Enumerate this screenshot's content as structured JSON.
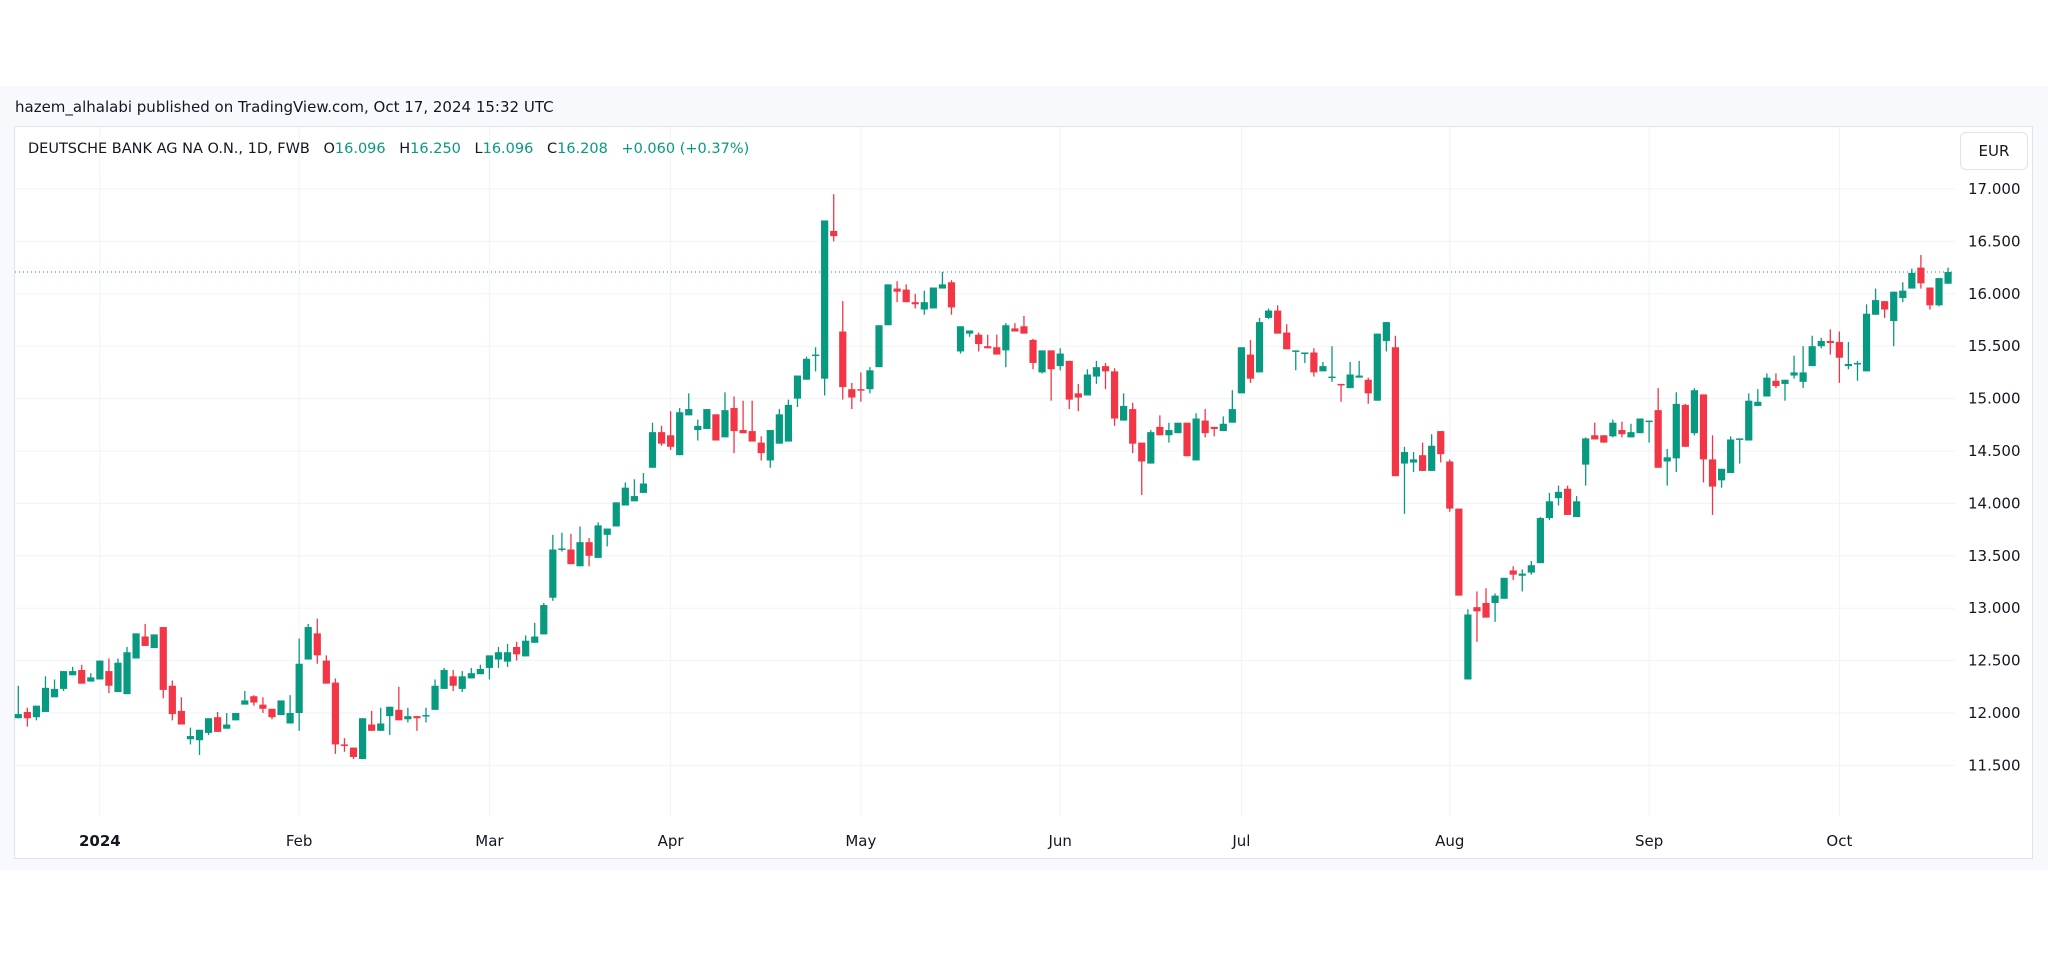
{
  "header": {
    "published": "hazem_alhalabi published on TradingView.com, Oct 17, 2024 15:32 UTC"
  },
  "legend": {
    "symbol": "DEUTSCHE BANK AG NA O.N., 1D, FWB",
    "o_label": "O",
    "o_value": "16.096",
    "h_label": "H",
    "h_value": "16.250",
    "l_label": "L",
    "l_value": "16.096",
    "c_label": "C",
    "c_value": "16.208",
    "change": "+0.060 (+0.37%)"
  },
  "currency_button": "EUR",
  "colors": {
    "up": "#089981",
    "down": "#f23645",
    "grid": "#f0f3fa",
    "last_price_line": "#089981"
  },
  "chart_data": {
    "type": "candlestick",
    "title": "",
    "interval": "1D",
    "last_price": 16.208,
    "ylim": [
      11.05,
      17.35
    ],
    "y_ticks": [
      "17.000",
      "16.500",
      "16.000",
      "15.500",
      "15.000",
      "14.500",
      "14.000",
      "13.500",
      "13.000",
      "12.500",
      "12.000",
      "11.500"
    ],
    "x_ticks": [
      {
        "label": "2024",
        "bar": 9,
        "bold": true
      },
      {
        "label": "Feb",
        "bar": 31
      },
      {
        "label": "Mar",
        "bar": 52
      },
      {
        "label": "Apr",
        "bar": 72
      },
      {
        "label": "May",
        "bar": 93
      },
      {
        "label": "Jun",
        "bar": 115
      },
      {
        "label": "Jul",
        "bar": 135
      },
      {
        "label": "Aug",
        "bar": 158
      },
      {
        "label": "Sep",
        "bar": 180
      },
      {
        "label": "Oct",
        "bar": 201
      }
    ],
    "grid": true,
    "ohlc_fields": [
      "open",
      "high",
      "low",
      "close"
    ],
    "ohlc": [
      [
        11.95,
        12.26,
        11.95,
        11.99
      ],
      [
        12.01,
        12.05,
        11.87,
        11.95
      ],
      [
        11.96,
        12.07,
        11.93,
        12.07
      ],
      [
        12.01,
        12.35,
        12.01,
        12.24
      ],
      [
        12.15,
        12.32,
        12.15,
        12.23
      ],
      [
        12.23,
        12.4,
        12.21,
        12.4
      ],
      [
        12.36,
        12.44,
        12.36,
        12.4
      ],
      [
        12.41,
        12.46,
        12.28,
        12.28
      ],
      [
        12.3,
        12.38,
        12.3,
        12.34
      ],
      [
        12.32,
        12.5,
        12.32,
        12.5
      ],
      [
        12.4,
        12.52,
        12.19,
        12.26
      ],
      [
        12.2,
        12.52,
        12.2,
        12.48
      ],
      [
        12.18,
        12.63,
        12.18,
        12.58
      ],
      [
        12.52,
        12.76,
        12.52,
        12.76
      ],
      [
        12.73,
        12.85,
        12.64,
        12.64
      ],
      [
        12.62,
        12.75,
        12.62,
        12.75
      ],
      [
        12.82,
        12.82,
        12.14,
        12.22
      ],
      [
        12.26,
        12.31,
        11.93,
        11.99
      ],
      [
        12.02,
        12.15,
        11.89,
        11.89
      ],
      [
        11.75,
        11.86,
        11.7,
        11.78
      ],
      [
        11.74,
        11.84,
        11.6,
        11.84
      ],
      [
        11.81,
        11.95,
        11.79,
        11.95
      ],
      [
        11.96,
        12.01,
        11.82,
        11.82
      ],
      [
        11.85,
        12.0,
        11.85,
        11.89
      ],
      [
        11.93,
        12.0,
        11.93,
        12.0
      ],
      [
        12.08,
        12.21,
        12.08,
        12.12
      ],
      [
        12.16,
        12.17,
        12.07,
        12.1
      ],
      [
        12.08,
        12.15,
        12.0,
        12.04
      ],
      [
        12.04,
        12.04,
        11.94,
        11.96
      ],
      [
        11.98,
        12.12,
        11.98,
        12.12
      ],
      [
        11.9,
        12.17,
        11.9,
        12.0
      ],
      [
        12.0,
        12.71,
        11.83,
        12.47
      ],
      [
        12.51,
        12.85,
        12.51,
        12.82
      ],
      [
        12.76,
        12.9,
        12.47,
        12.55
      ],
      [
        12.5,
        12.55,
        12.28,
        12.28
      ],
      [
        12.29,
        12.33,
        11.61,
        11.7
      ],
      [
        11.7,
        11.76,
        11.63,
        11.69
      ],
      [
        11.67,
        11.67,
        11.56,
        11.58
      ],
      [
        11.56,
        11.95,
        11.56,
        11.95
      ],
      [
        11.89,
        12.02,
        11.83,
        11.83
      ],
      [
        11.83,
        12.05,
        11.83,
        11.9
      ],
      [
        11.97,
        12.06,
        11.79,
        12.06
      ],
      [
        12.03,
        12.25,
        11.93,
        11.93
      ],
      [
        11.94,
        12.05,
        11.91,
        11.97
      ],
      [
        11.97,
        11.97,
        11.83,
        11.95
      ],
      [
        11.97,
        12.05,
        11.91,
        11.98
      ],
      [
        12.03,
        12.32,
        12.03,
        12.26
      ],
      [
        12.23,
        12.43,
        12.23,
        12.41
      ],
      [
        12.35,
        12.41,
        12.21,
        12.26
      ],
      [
        12.23,
        12.4,
        12.2,
        12.35
      ],
      [
        12.33,
        12.43,
        12.33,
        12.38
      ],
      [
        12.37,
        12.46,
        12.37,
        12.42
      ],
      [
        12.43,
        12.55,
        12.32,
        12.55
      ],
      [
        12.51,
        12.63,
        12.43,
        12.58
      ],
      [
        12.49,
        12.66,
        12.44,
        12.58
      ],
      [
        12.63,
        12.68,
        12.5,
        12.56
      ],
      [
        12.54,
        12.74,
        12.54,
        12.69
      ],
      [
        12.67,
        12.86,
        12.67,
        12.73
      ],
      [
        12.75,
        13.05,
        12.75,
        13.03
      ],
      [
        13.1,
        13.7,
        13.07,
        13.56
      ],
      [
        13.56,
        13.72,
        13.54,
        13.57
      ],
      [
        13.56,
        13.71,
        13.42,
        13.42
      ],
      [
        13.4,
        13.78,
        13.4,
        13.63
      ],
      [
        13.63,
        13.67,
        13.4,
        13.5
      ],
      [
        13.48,
        13.82,
        13.48,
        13.79
      ],
      [
        13.7,
        13.76,
        13.59,
        13.76
      ],
      [
        13.78,
        14.01,
        13.78,
        14.01
      ],
      [
        13.98,
        14.2,
        13.98,
        14.15
      ],
      [
        14.02,
        14.23,
        14.02,
        14.07
      ],
      [
        14.1,
        14.29,
        14.1,
        14.19
      ],
      [
        14.34,
        14.77,
        14.34,
        14.68
      ],
      [
        14.68,
        14.74,
        14.55,
        14.57
      ],
      [
        14.65,
        14.88,
        14.51,
        14.54
      ],
      [
        14.46,
        14.91,
        14.46,
        14.87
      ],
      [
        14.84,
        15.05,
        14.84,
        14.9
      ],
      [
        14.7,
        14.8,
        14.6,
        14.74
      ],
      [
        14.71,
        14.9,
        14.71,
        14.9
      ],
      [
        14.85,
        14.85,
        14.6,
        14.6
      ],
      [
        14.63,
        15.06,
        14.63,
        14.89
      ],
      [
        14.91,
        15.02,
        14.48,
        14.69
      ],
      [
        14.7,
        14.98,
        14.67,
        14.67
      ],
      [
        14.69,
        14.98,
        14.59,
        14.59
      ],
      [
        14.58,
        14.64,
        14.41,
        14.48
      ],
      [
        14.41,
        14.7,
        14.34,
        14.7
      ],
      [
        14.57,
        14.9,
        14.57,
        14.85
      ],
      [
        14.59,
        14.99,
        14.59,
        14.94
      ],
      [
        15.0,
        15.22,
        14.92,
        15.22
      ],
      [
        15.18,
        15.4,
        15.18,
        15.38
      ],
      [
        15.41,
        15.49,
        15.26,
        15.42
      ],
      [
        15.19,
        16.7,
        15.03,
        16.7
      ],
      [
        16.6,
        16.95,
        16.5,
        16.55
      ],
      [
        15.64,
        15.93,
        14.99,
        15.11
      ],
      [
        15.09,
        15.15,
        14.9,
        15.01
      ],
      [
        15.09,
        15.25,
        14.97,
        15.08
      ],
      [
        15.09,
        15.3,
        15.05,
        15.27
      ],
      [
        15.3,
        15.7,
        15.3,
        15.7
      ],
      [
        15.7,
        16.09,
        15.7,
        16.09
      ],
      [
        16.05,
        16.12,
        15.92,
        16.02
      ],
      [
        16.04,
        16.09,
        15.92,
        15.92
      ],
      [
        15.92,
        16.0,
        15.86,
        15.9
      ],
      [
        15.85,
        16.03,
        15.8,
        15.92
      ],
      [
        15.86,
        16.06,
        15.86,
        16.06
      ],
      [
        16.05,
        16.21,
        16.05,
        16.09
      ],
      [
        16.11,
        16.13,
        15.8,
        15.87
      ],
      [
        15.45,
        15.69,
        15.43,
        15.69
      ],
      [
        15.62,
        15.65,
        15.59,
        15.65
      ],
      [
        15.61,
        15.63,
        15.45,
        15.52
      ],
      [
        15.5,
        15.61,
        15.48,
        15.48
      ],
      [
        15.49,
        15.61,
        15.42,
        15.42
      ],
      [
        15.46,
        15.72,
        15.3,
        15.7
      ],
      [
        15.67,
        15.72,
        15.64,
        15.64
      ],
      [
        15.69,
        15.79,
        15.62,
        15.62
      ],
      [
        15.56,
        15.57,
        15.28,
        15.34
      ],
      [
        15.25,
        15.46,
        15.24,
        15.46
      ],
      [
        15.46,
        15.46,
        14.98,
        15.28
      ],
      [
        15.31,
        15.48,
        15.27,
        15.43
      ],
      [
        15.36,
        15.36,
        14.9,
        14.99
      ],
      [
        15.05,
        15.14,
        14.88,
        15.01
      ],
      [
        15.03,
        15.28,
        15.03,
        15.23
      ],
      [
        15.21,
        15.36,
        15.14,
        15.3
      ],
      [
        15.31,
        15.34,
        15.09,
        15.26
      ],
      [
        15.26,
        15.29,
        14.74,
        14.81
      ],
      [
        14.79,
        15.05,
        14.79,
        14.93
      ],
      [
        14.9,
        14.96,
        14.48,
        14.57
      ],
      [
        14.58,
        14.58,
        14.08,
        14.4
      ],
      [
        14.38,
        14.7,
        14.38,
        14.68
      ],
      [
        14.73,
        14.84,
        14.65,
        14.65
      ],
      [
        14.65,
        14.77,
        14.58,
        14.7
      ],
      [
        14.67,
        14.77,
        14.67,
        14.77
      ],
      [
        14.77,
        14.77,
        14.45,
        14.45
      ],
      [
        14.41,
        14.86,
        14.41,
        14.81
      ],
      [
        14.79,
        14.9,
        14.63,
        14.67
      ],
      [
        14.73,
        14.73,
        14.64,
        14.71
      ],
      [
        14.69,
        14.83,
        14.69,
        14.76
      ],
      [
        14.77,
        15.08,
        14.77,
        14.9
      ],
      [
        15.05,
        15.49,
        15.05,
        15.49
      ],
      [
        15.42,
        15.56,
        15.15,
        15.19
      ],
      [
        15.25,
        15.77,
        15.25,
        15.73
      ],
      [
        15.77,
        15.86,
        15.76,
        15.84
      ],
      [
        15.84,
        15.89,
        15.62,
        15.62
      ],
      [
        15.63,
        15.71,
        15.47,
        15.47
      ],
      [
        15.45,
        15.46,
        15.27,
        15.46
      ],
      [
        15.43,
        15.44,
        15.34,
        15.44
      ],
      [
        15.44,
        15.48,
        15.21,
        15.25
      ],
      [
        15.26,
        15.35,
        15.26,
        15.31
      ],
      [
        15.2,
        15.5,
        15.16,
        15.21
      ],
      [
        15.14,
        15.14,
        14.97,
        15.13
      ],
      [
        15.1,
        15.35,
        15.1,
        15.23
      ],
      [
        15.2,
        15.36,
        15.2,
        15.22
      ],
      [
        15.18,
        15.2,
        14.95,
        15.05
      ],
      [
        14.98,
        15.62,
        14.98,
        15.62
      ],
      [
        15.55,
        15.73,
        15.45,
        15.73
      ],
      [
        15.49,
        15.6,
        14.26,
        14.26
      ],
      [
        14.38,
        14.54,
        13.9,
        14.49
      ],
      [
        14.39,
        14.49,
        14.3,
        14.42
      ],
      [
        14.46,
        14.58,
        14.31,
        14.31
      ],
      [
        14.31,
        14.66,
        14.31,
        14.55
      ],
      [
        14.69,
        14.69,
        14.39,
        14.47
      ],
      [
        14.4,
        14.42,
        13.92,
        13.95
      ],
      [
        13.95,
        13.95,
        13.12,
        13.12
      ],
      [
        12.32,
        12.99,
        12.32,
        12.94
      ],
      [
        13.01,
        13.16,
        12.68,
        12.97
      ],
      [
        13.05,
        13.19,
        12.91,
        12.91
      ],
      [
        13.05,
        13.14,
        12.87,
        13.12
      ],
      [
        13.09,
        13.29,
        13.09,
        13.29
      ],
      [
        13.36,
        13.4,
        13.27,
        13.32
      ],
      [
        13.31,
        13.37,
        13.16,
        13.33
      ],
      [
        13.34,
        13.45,
        13.32,
        13.41
      ],
      [
        13.43,
        13.87,
        13.43,
        13.86
      ],
      [
        13.86,
        14.1,
        13.84,
        14.02
      ],
      [
        14.05,
        14.17,
        13.98,
        14.11
      ],
      [
        14.14,
        14.17,
        13.89,
        13.89
      ],
      [
        13.87,
        14.07,
        13.87,
        14.02
      ],
      [
        14.37,
        14.63,
        14.17,
        14.62
      ],
      [
        14.65,
        14.77,
        14.61,
        14.61
      ],
      [
        14.65,
        14.65,
        14.58,
        14.58
      ],
      [
        14.64,
        14.8,
        14.63,
        14.77
      ],
      [
        14.7,
        14.78,
        14.63,
        14.66
      ],
      [
        14.63,
        14.76,
        14.63,
        14.68
      ],
      [
        14.67,
        14.81,
        14.67,
        14.81
      ],
      [
        14.78,
        14.79,
        14.58,
        14.79
      ],
      [
        14.89,
        15.1,
        14.34,
        14.34
      ],
      [
        14.4,
        14.52,
        14.17,
        14.44
      ],
      [
        14.43,
        15.06,
        14.3,
        14.95
      ],
      [
        14.94,
        14.95,
        14.54,
        14.54
      ],
      [
        14.67,
        15.1,
        14.65,
        15.08
      ],
      [
        15.04,
        15.04,
        14.2,
        14.42
      ],
      [
        14.42,
        14.65,
        13.89,
        14.16
      ],
      [
        14.22,
        14.33,
        14.15,
        14.33
      ],
      [
        14.29,
        14.64,
        14.29,
        14.61
      ],
      [
        14.61,
        14.62,
        14.38,
        14.62
      ],
      [
        14.6,
        15.05,
        14.6,
        14.98
      ],
      [
        14.93,
        15.09,
        14.93,
        14.97
      ],
      [
        15.02,
        15.24,
        15.02,
        15.2
      ],
      [
        15.17,
        15.24,
        15.1,
        15.12
      ],
      [
        15.14,
        15.18,
        14.98,
        15.18
      ],
      [
        15.22,
        15.41,
        15.19,
        15.25
      ],
      [
        15.16,
        15.5,
        15.1,
        15.25
      ],
      [
        15.31,
        15.6,
        15.31,
        15.5
      ],
      [
        15.5,
        15.58,
        15.48,
        15.55
      ],
      [
        15.55,
        15.66,
        15.42,
        15.53
      ],
      [
        15.54,
        15.64,
        15.15,
        15.39
      ],
      [
        15.31,
        15.54,
        15.28,
        15.33
      ],
      [
        15.33,
        15.36,
        15.17,
        15.34
      ],
      [
        15.26,
        15.9,
        15.26,
        15.81
      ],
      [
        15.8,
        16.05,
        15.8,
        15.94
      ],
      [
        15.93,
        15.93,
        15.77,
        15.85
      ],
      [
        15.74,
        16.02,
        15.5,
        16.02
      ],
      [
        15.96,
        16.11,
        15.92,
        16.03
      ],
      [
        16.05,
        16.24,
        16.05,
        16.2
      ],
      [
        16.25,
        16.37,
        16.05,
        16.1
      ],
      [
        16.06,
        16.06,
        15.85,
        15.89
      ],
      [
        15.89,
        16.15,
        15.88,
        16.15
      ],
      [
        16.096,
        16.25,
        16.096,
        16.208
      ]
    ]
  }
}
